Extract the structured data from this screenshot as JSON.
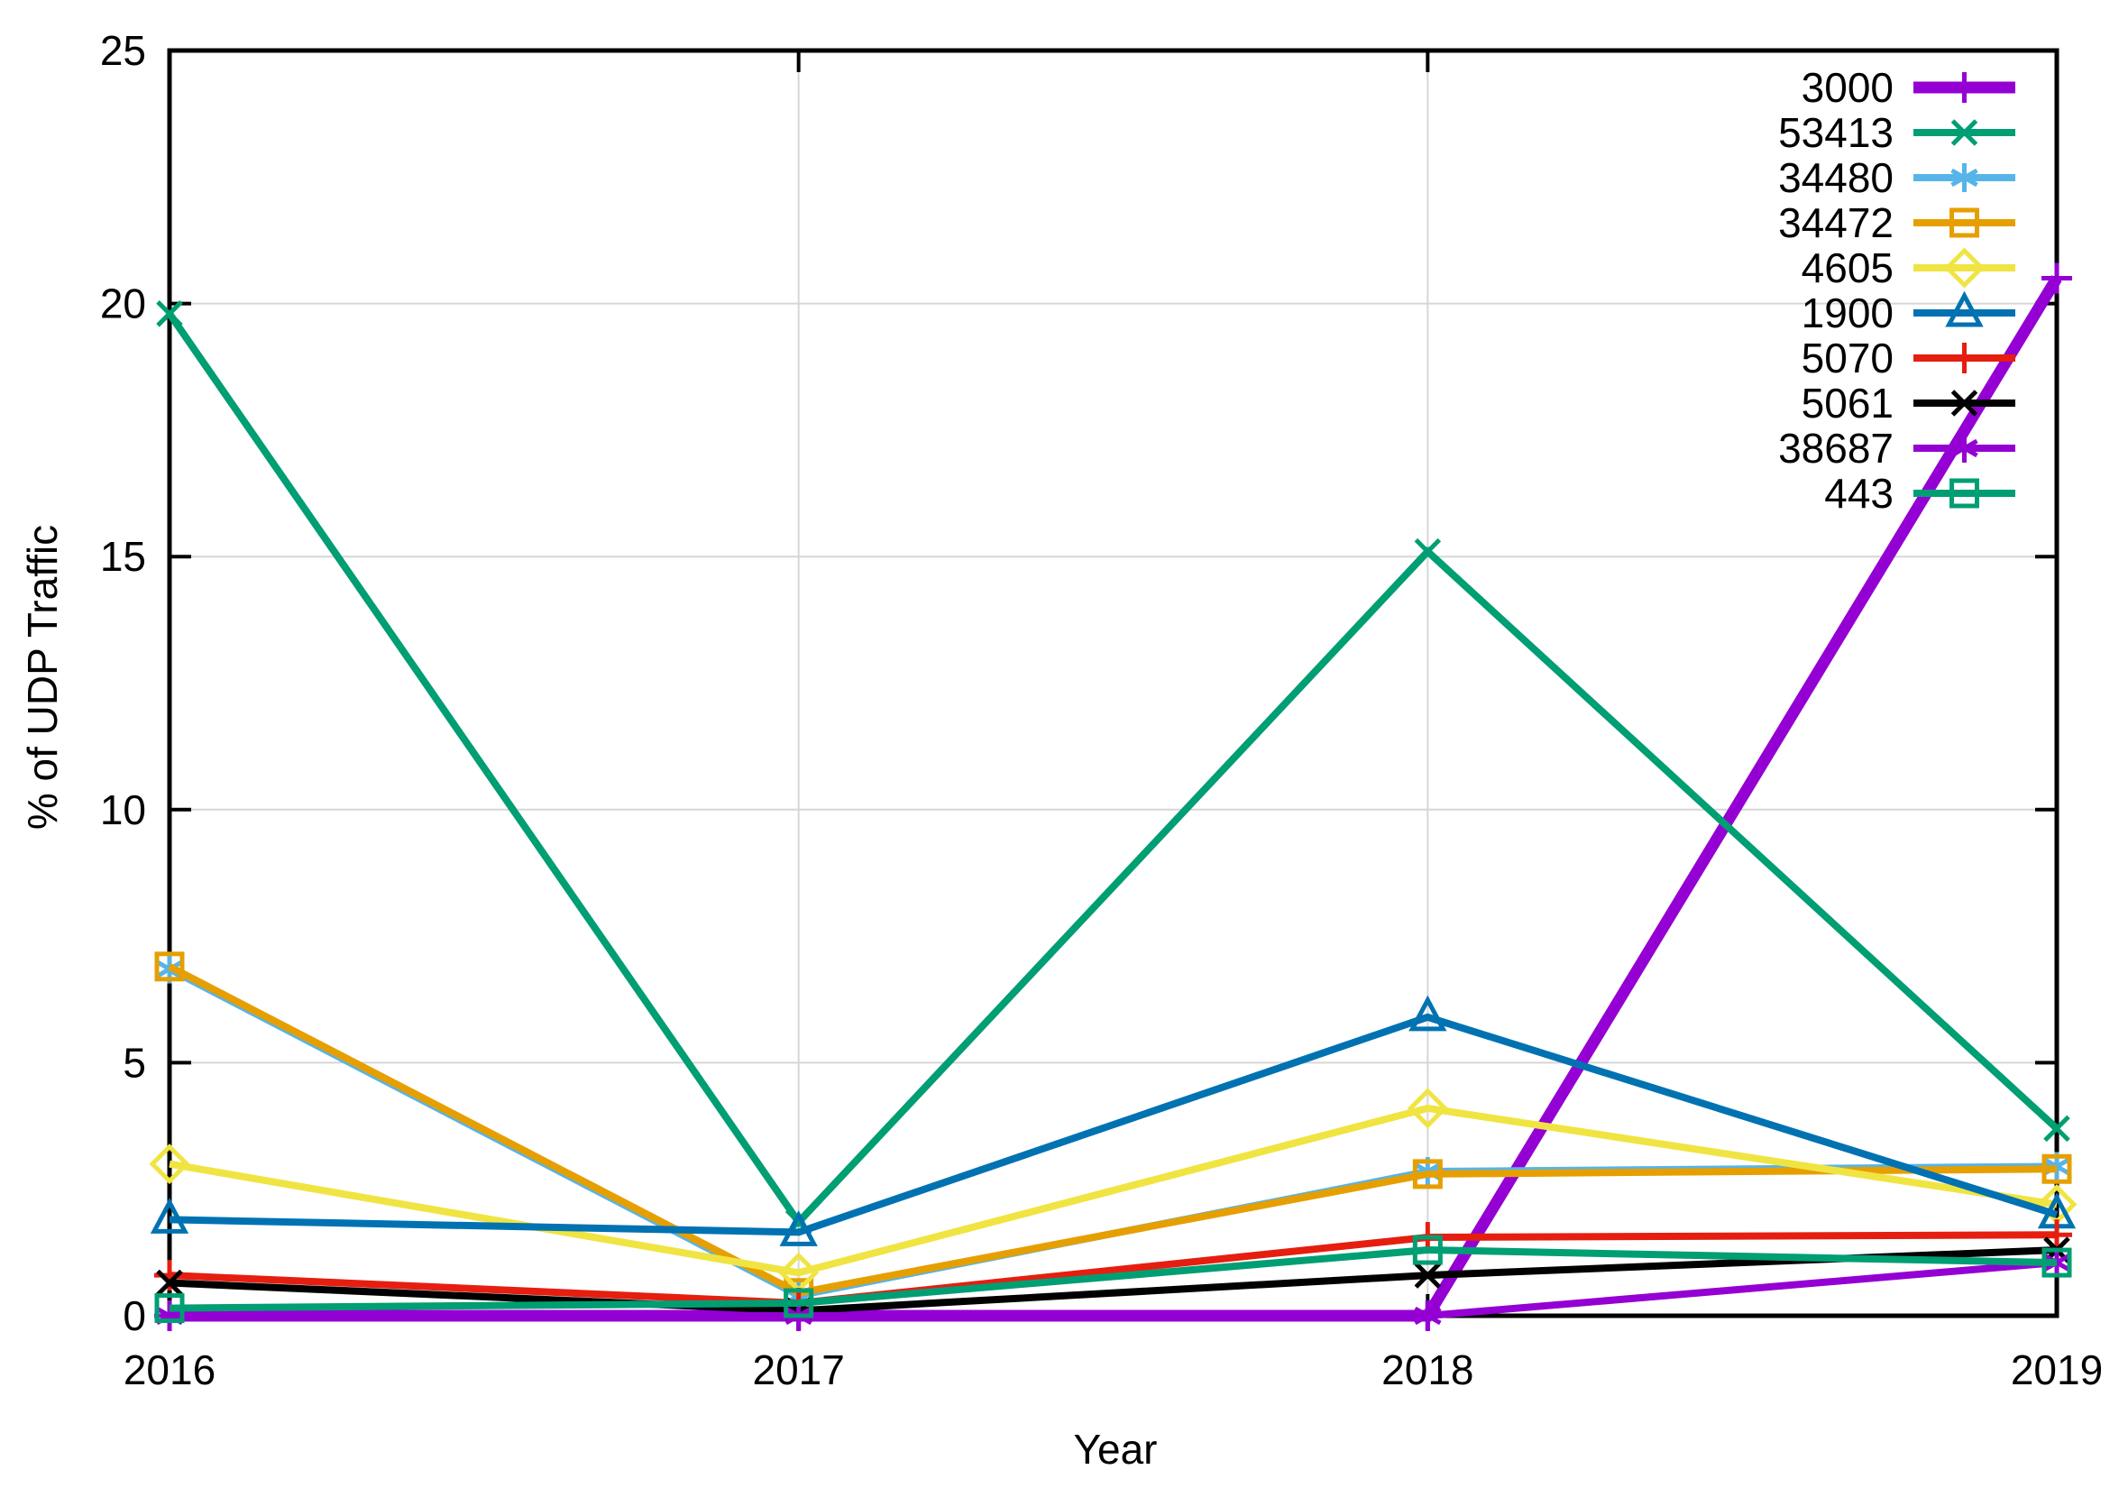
{
  "chart_data": {
    "type": "line",
    "title": "",
    "xlabel": "Year",
    "ylabel": "% of UDP Traffic",
    "x": [
      2016,
      2017,
      2018,
      2019
    ],
    "xticks": [
      2016,
      2017,
      2018,
      2019
    ],
    "yticks": [
      0,
      5,
      10,
      15,
      20,
      25
    ],
    "xlim": [
      2016,
      2019
    ],
    "ylim": [
      0,
      25
    ],
    "grid": true,
    "legend_position": "top-right-inside",
    "background_color": "#ffffff",
    "grid_color": "#d6d6d6",
    "border_color": "#000000",
    "series": [
      {
        "name": "3000",
        "color": "#9400d3",
        "marker": "plus",
        "line_width": 13,
        "values": [
          0,
          0,
          0,
          20.5
        ]
      },
      {
        "name": "53413",
        "color": "#009e73",
        "marker": "cross",
        "line_width": 8,
        "values": [
          19.8,
          1.85,
          15.1,
          3.7
        ]
      },
      {
        "name": "34480",
        "color": "#56b4e9",
        "marker": "asterisk",
        "line_width": 8,
        "values": [
          6.85,
          0.4,
          2.85,
          2.95
        ]
      },
      {
        "name": "34472",
        "color": "#e69f00",
        "marker": "square",
        "line_width": 8,
        "values": [
          6.9,
          0.45,
          2.8,
          2.9
        ]
      },
      {
        "name": "4605",
        "color": "#f0e442",
        "marker": "diamond",
        "line_width": 8,
        "values": [
          3.0,
          0.85,
          4.1,
          2.2
        ]
      },
      {
        "name": "1900",
        "color": "#0072b2",
        "marker": "triangle",
        "line_width": 8,
        "values": [
          1.9,
          1.65,
          5.9,
          2.0
        ]
      },
      {
        "name": "5070",
        "color": "#e51e10",
        "marker": "plus",
        "line_width": 8,
        "values": [
          0.8,
          0.25,
          1.55,
          1.6
        ]
      },
      {
        "name": "5061",
        "color": "#000000",
        "marker": "cross",
        "line_width": 8,
        "values": [
          0.65,
          0.1,
          0.8,
          1.3
        ]
      },
      {
        "name": "38687",
        "color": "#9400d3",
        "marker": "asterisk",
        "line_width": 8,
        "values": [
          0,
          0,
          0,
          1.05
        ]
      },
      {
        "name": "443",
        "color": "#009e73",
        "marker": "square",
        "line_width": 8,
        "values": [
          0.15,
          0.25,
          1.3,
          1.05
        ]
      }
    ]
  }
}
